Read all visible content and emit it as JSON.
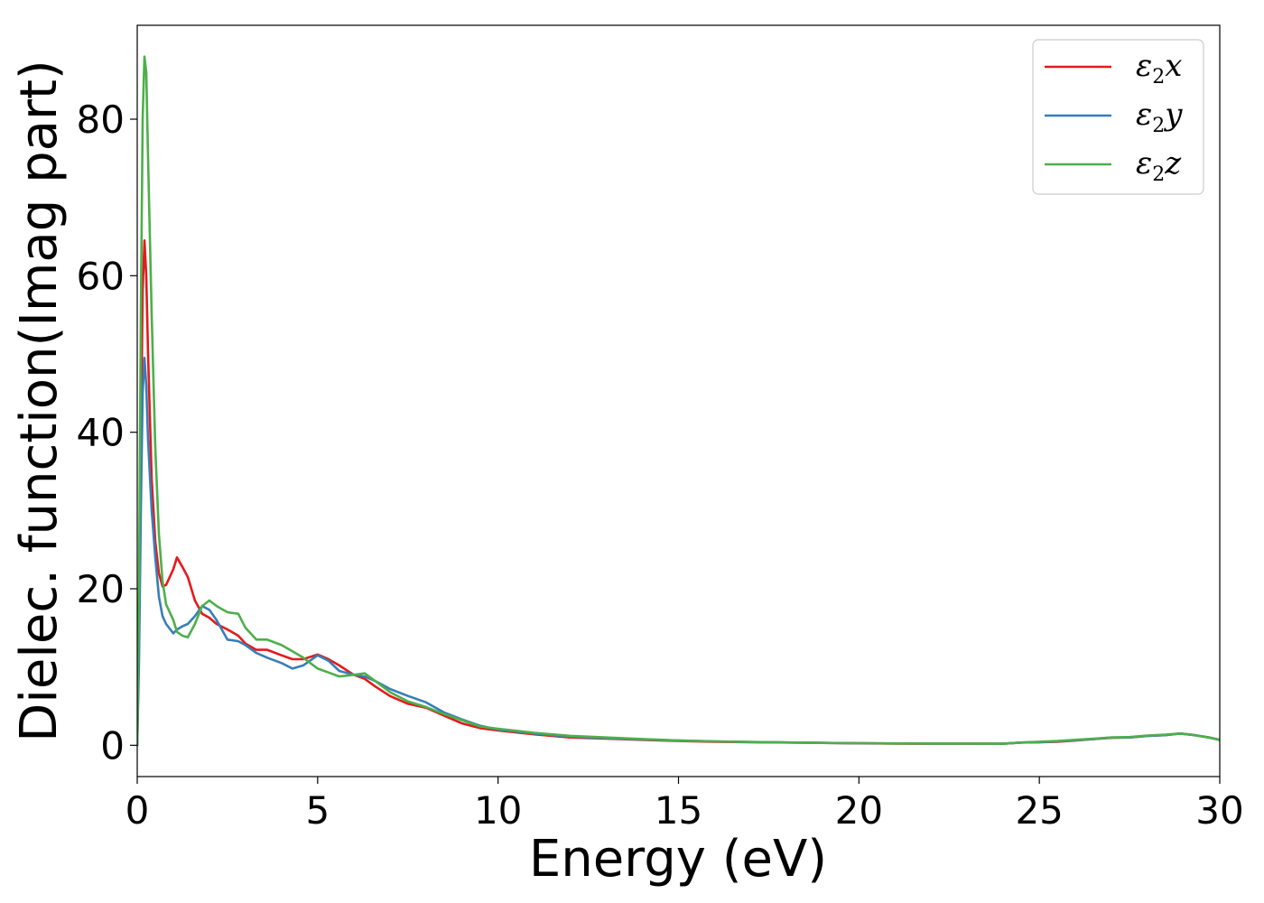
{
  "chart_data": {
    "type": "line",
    "title": "",
    "xlabel": "Energy (eV)",
    "ylabel": "Dielec. function(Imag part)",
    "xlim": [
      0,
      30
    ],
    "ylim": [
      -4,
      92
    ],
    "xticks": [
      0,
      5,
      10,
      15,
      20,
      25,
      30
    ],
    "yticks": [
      0,
      20,
      40,
      60,
      80
    ],
    "grid": false,
    "legend_position": "top-right",
    "x": [
      0,
      0.05,
      0.1,
      0.15,
      0.2,
      0.25,
      0.3,
      0.4,
      0.5,
      0.6,
      0.7,
      0.8,
      1.0,
      1.1,
      1.25,
      1.4,
      1.6,
      1.8,
      2.0,
      2.2,
      2.5,
      2.8,
      3.0,
      3.3,
      3.6,
      4.0,
      4.3,
      4.6,
      5.0,
      5.3,
      5.6,
      6.0,
      6.3,
      6.6,
      7.0,
      7.5,
      8.0,
      8.5,
      9.0,
      9.5,
      10,
      11,
      12,
      13,
      14,
      15,
      16,
      17,
      18,
      19,
      20,
      21,
      22,
      23,
      24,
      24.5,
      25,
      25.5,
      26,
      26.5,
      27,
      27.5,
      28,
      28.5,
      28.9,
      29.3,
      29.7,
      30
    ],
    "series": [
      {
        "name": "ε2x",
        "symbol": "ε",
        "sub": "2",
        "axis": "x",
        "color": "#e41a1c",
        "values": [
          0,
          14,
          38,
          58,
          64.5,
          60,
          50,
          34,
          26,
          22,
          20.3,
          20.5,
          22.5,
          24,
          22.8,
          21.5,
          18.5,
          16.8,
          16.3,
          15.5,
          14.8,
          14,
          13,
          12.2,
          12.2,
          11.5,
          11,
          11,
          11.6,
          11,
          10.2,
          9,
          8.5,
          7.5,
          6.3,
          5.3,
          4.8,
          3.8,
          2.8,
          2.2,
          1.9,
          1.4,
          1.0,
          0.85,
          0.7,
          0.55,
          0.45,
          0.4,
          0.35,
          0.3,
          0.25,
          0.22,
          0.2,
          0.2,
          0.2,
          0.35,
          0.4,
          0.45,
          0.6,
          0.8,
          0.95,
          1.0,
          1.2,
          1.3,
          1.5,
          1.3,
          1.0,
          0.7
        ]
      },
      {
        "name": "ε2y",
        "symbol": "ε",
        "sub": "2",
        "axis": "y",
        "color": "#377eb8",
        "values": [
          0,
          11,
          30,
          45,
          49.5,
          46,
          39,
          30,
          24,
          19,
          16.5,
          15.5,
          14.3,
          14.8,
          15.2,
          15.5,
          16.5,
          17.8,
          17.3,
          16,
          13.5,
          13.3,
          12.8,
          11.8,
          11.2,
          10.5,
          9.8,
          10.2,
          11.5,
          10.8,
          9.5,
          9,
          8.8,
          8.2,
          7.2,
          6.3,
          5.5,
          4.2,
          3.3,
          2.5,
          2.0,
          1.5,
          1.1,
          0.9,
          0.75,
          0.6,
          0.5,
          0.42,
          0.36,
          0.3,
          0.27,
          0.24,
          0.22,
          0.21,
          0.2,
          0.35,
          0.4,
          0.5,
          0.65,
          0.8,
          1.0,
          1.0,
          1.2,
          1.3,
          1.5,
          1.3,
          1.0,
          0.7
        ]
      },
      {
        "name": "ε2z",
        "symbol": "ε",
        "sub": "2",
        "axis": "z",
        "color": "#4daf4a",
        "values": [
          0,
          20,
          55,
          80,
          88,
          86,
          75,
          55,
          38,
          27,
          21,
          18,
          16,
          14.5,
          14,
          13.8,
          15.5,
          17.8,
          18.5,
          17.8,
          17,
          16.8,
          15,
          13.5,
          13.5,
          12.8,
          12,
          11.2,
          9.8,
          9.3,
          8.8,
          9,
          9.2,
          8.2,
          6.8,
          5.6,
          4.9,
          4,
          3.2,
          2.4,
          2.1,
          1.6,
          1.2,
          1.0,
          0.8,
          0.6,
          0.5,
          0.42,
          0.36,
          0.3,
          0.27,
          0.24,
          0.22,
          0.21,
          0.2,
          0.35,
          0.45,
          0.55,
          0.7,
          0.85,
          1.0,
          1.05,
          1.25,
          1.35,
          1.5,
          1.3,
          1.0,
          0.7
        ]
      }
    ]
  }
}
